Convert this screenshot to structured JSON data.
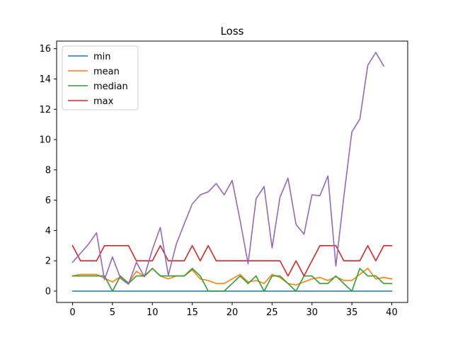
{
  "chart_data": {
    "type": "line",
    "title": "Loss",
    "xlabel": "",
    "ylabel": "",
    "xlim": [
      -2,
      42
    ],
    "ylim": [
      -0.75,
      16.5
    ],
    "xticks": [
      0,
      5,
      10,
      15,
      20,
      25,
      30,
      35,
      40
    ],
    "yticks": [
      0,
      2,
      4,
      6,
      8,
      10,
      12,
      14,
      16
    ],
    "grid": false,
    "legend_position": "top-left",
    "series": [
      {
        "name": "min",
        "color": "#1f77b4",
        "x": [
          0,
          1,
          2,
          3,
          4,
          5,
          6,
          7,
          8,
          9,
          10,
          11,
          12,
          13,
          14,
          15,
          16,
          17,
          18,
          19,
          20,
          21,
          22,
          23,
          24,
          25,
          26,
          27,
          28,
          29,
          30,
          31,
          32,
          33,
          34,
          35,
          36,
          37,
          38,
          39,
          40
        ],
        "y": [
          0,
          0,
          0,
          0,
          0,
          0,
          0,
          0,
          0,
          0,
          0,
          0,
          0,
          0,
          0,
          0,
          0,
          0,
          0,
          0,
          0,
          0,
          0,
          0,
          0,
          0,
          0,
          0,
          0,
          0,
          0,
          0,
          0,
          0,
          0,
          0,
          0,
          0,
          0,
          0,
          0
        ]
      },
      {
        "name": "mean",
        "color": "#ff7f0e",
        "x": [
          0,
          1,
          2,
          3,
          4,
          5,
          6,
          7,
          8,
          9,
          10,
          11,
          12,
          13,
          14,
          15,
          16,
          17,
          18,
          19,
          20,
          21,
          22,
          23,
          24,
          25,
          26,
          27,
          28,
          29,
          30,
          31,
          32,
          33,
          34,
          35,
          36,
          37,
          38,
          39,
          40
        ],
        "y": [
          1.0,
          1.1,
          1.1,
          1.1,
          0.85,
          0.6,
          0.95,
          0.55,
          1.3,
          0.95,
          1.5,
          1.0,
          0.8,
          1.0,
          1.0,
          1.4,
          0.8,
          0.7,
          0.5,
          0.5,
          0.8,
          1.1,
          0.6,
          0.7,
          0.5,
          1.1,
          0.9,
          0.5,
          0.4,
          0.6,
          0.8,
          0.9,
          0.7,
          0.95,
          0.7,
          0.7,
          1.1,
          1.5,
          0.8,
          0.9,
          0.8
        ]
      },
      {
        "name": "median",
        "color": "#2ca02c",
        "x": [
          0,
          1,
          2,
          3,
          4,
          5,
          6,
          7,
          8,
          9,
          10,
          11,
          12,
          13,
          14,
          15,
          16,
          17,
          18,
          19,
          20,
          21,
          22,
          23,
          24,
          25,
          26,
          27,
          28,
          29,
          30,
          31,
          32,
          33,
          34,
          35,
          36,
          37,
          38,
          39,
          40
        ],
        "y": [
          1,
          1,
          1,
          1,
          1,
          0,
          1,
          0.5,
          1,
          1,
          1.5,
          1,
          1,
          1,
          1,
          1.5,
          1,
          0,
          0,
          0,
          0.5,
          1,
          0.5,
          1,
          0,
          1,
          1,
          0.5,
          0,
          1,
          1,
          0.5,
          0.5,
          1,
          0.5,
          0,
          1.5,
          1,
          1,
          0.5,
          0.5
        ]
      },
      {
        "name": "max",
        "color": "#d62728",
        "x": [
          0,
          1,
          2,
          3,
          4,
          5,
          6,
          7,
          8,
          9,
          10,
          11,
          12,
          13,
          14,
          15,
          16,
          17,
          18,
          19,
          20,
          21,
          22,
          23,
          24,
          25,
          26,
          27,
          28,
          29,
          30,
          31,
          32,
          33,
          34,
          35,
          36,
          37,
          38,
          39,
          40
        ],
        "y": [
          3,
          2,
          2,
          2,
          3,
          3,
          3,
          3,
          2,
          2,
          2,
          3,
          2,
          2,
          2,
          3,
          2,
          3,
          2,
          2,
          2,
          2,
          2,
          2,
          2,
          2,
          2,
          1,
          2,
          1,
          2,
          3,
          3,
          3,
          2,
          2,
          2,
          3,
          2,
          3,
          3
        ]
      },
      {
        "name": "",
        "color": "#9467bd",
        "x": [
          0,
          1,
          2,
          3,
          4,
          5,
          6,
          7,
          8,
          9,
          10,
          11,
          12,
          13,
          14,
          15,
          16,
          17,
          18,
          19,
          20,
          21,
          22,
          23,
          24,
          25,
          26,
          27,
          28,
          29,
          30,
          31,
          32,
          33,
          34,
          35,
          36,
          37,
          38,
          39
        ],
        "y": [
          1.9,
          2.5,
          3.1,
          3.85,
          0.75,
          2.25,
          0.85,
          0.45,
          1.9,
          0.95,
          2.75,
          4.2,
          1.05,
          3.1,
          4.45,
          5.75,
          6.35,
          6.55,
          7.1,
          6.35,
          7.3,
          4.65,
          1.8,
          6.1,
          6.9,
          2.85,
          6.2,
          7.45,
          4.4,
          3.75,
          6.35,
          6.3,
          7.6,
          1.65,
          6.25,
          10.5,
          11.35,
          14.9,
          15.75,
          14.85
        ]
      }
    ]
  }
}
